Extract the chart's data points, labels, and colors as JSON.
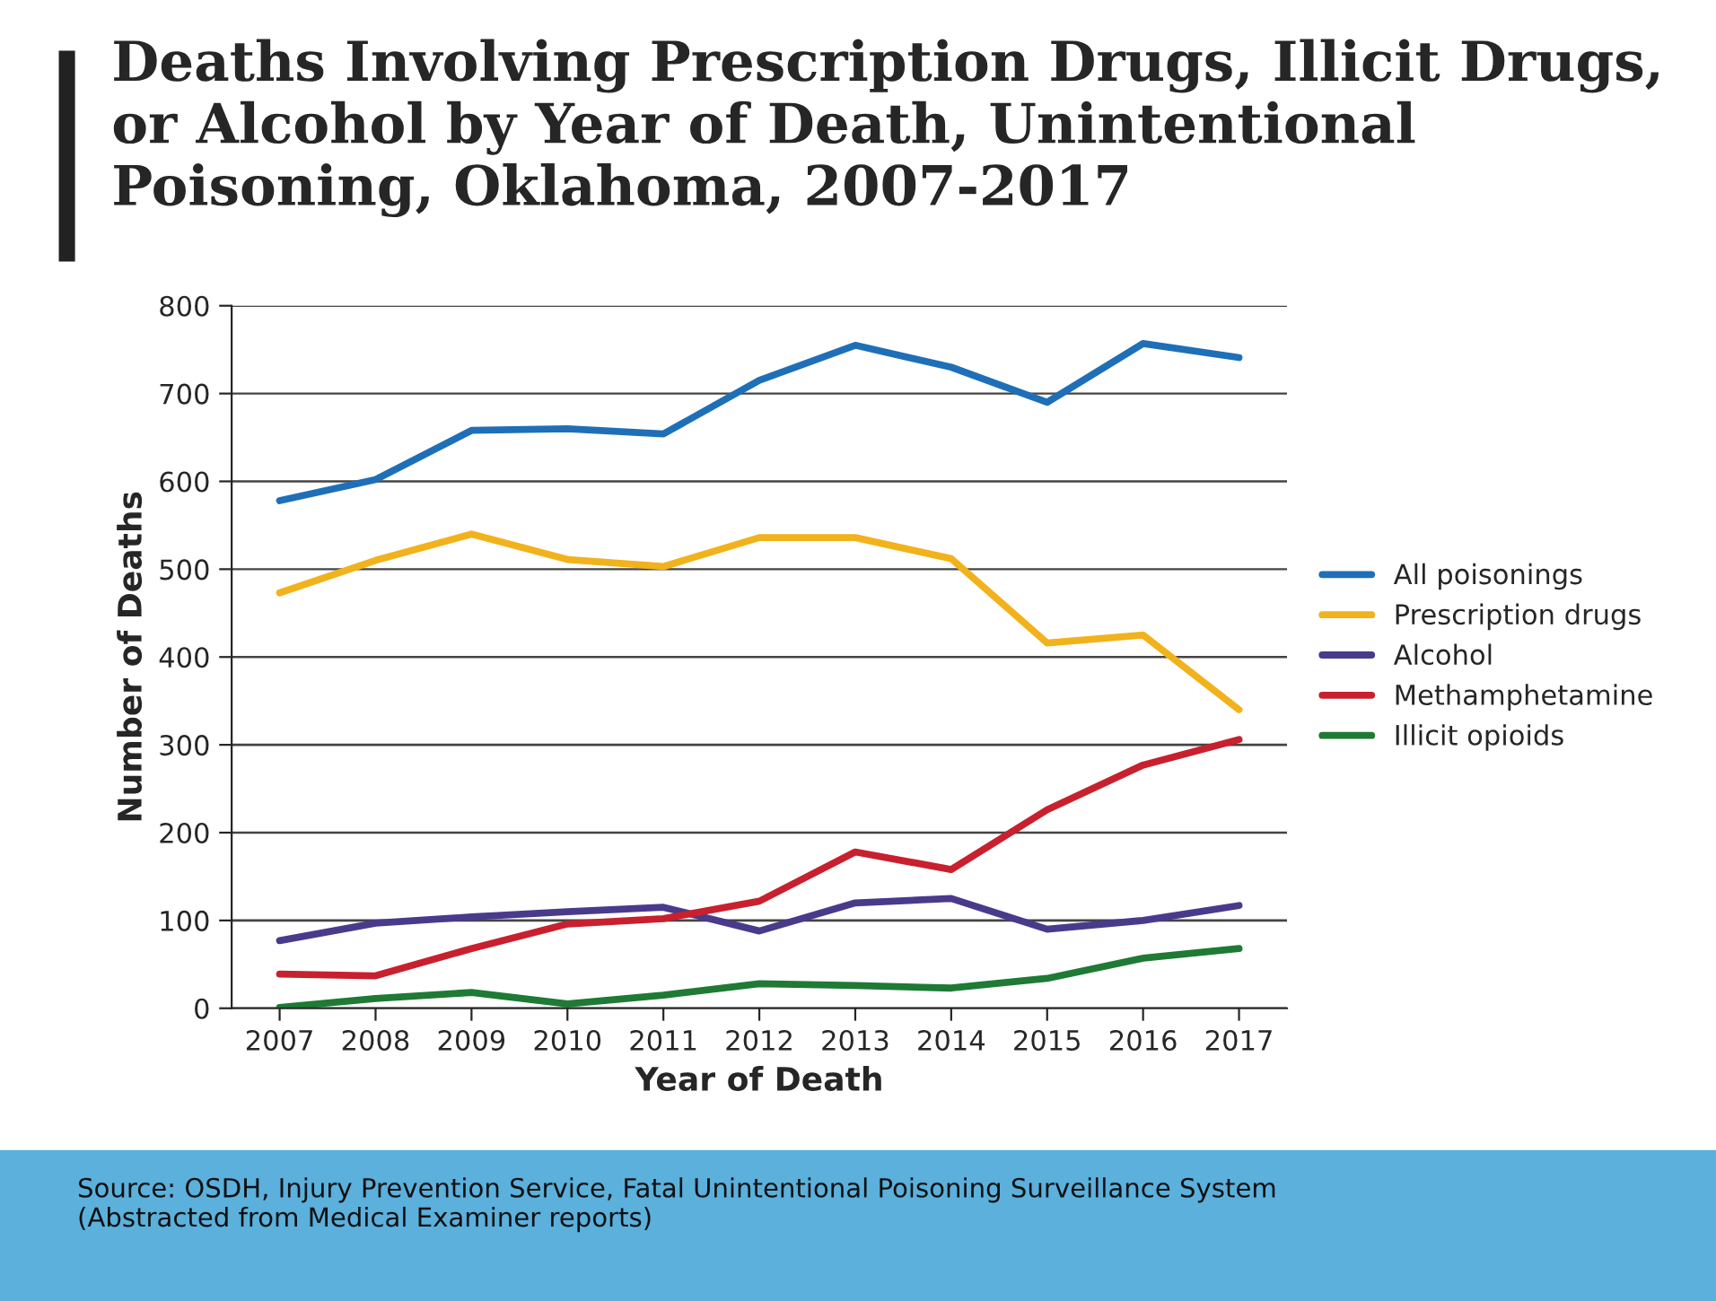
{
  "chart_data": {
    "type": "line",
    "title": "Deaths Involving Prescription Drugs, Illicit Drugs, or Alcohol by Year of Death, Unintentional Poisoning, Oklahoma, 2007-2017",
    "xlabel": "Year of Death",
    "ylabel": "Number of Deaths",
    "categories": [
      "2007",
      "2008",
      "2009",
      "2010",
      "2011",
      "2012",
      "2013",
      "2014",
      "2015",
      "2016",
      "2017"
    ],
    "series": [
      {
        "name": "All poisonings",
        "color": "#1f6fb8",
        "values": [
          578,
          602,
          658,
          660,
          654,
          715,
          755,
          730,
          690,
          757,
          741
        ]
      },
      {
        "name": "Prescription drugs",
        "color": "#f2b21c",
        "values": [
          473,
          510,
          540,
          511,
          503,
          536,
          536,
          512,
          416,
          425,
          340
        ]
      },
      {
        "name": "Alcohol",
        "color": "#4a3a8c",
        "values": [
          77,
          97,
          104,
          110,
          115,
          88,
          120,
          125,
          90,
          100,
          117
        ]
      },
      {
        "name": "Methamphetamine",
        "color": "#c8202e",
        "values": [
          39,
          37,
          68,
          96,
          102,
          122,
          178,
          158,
          226,
          277,
          306
        ]
      },
      {
        "name": "Illicit opioids",
        "color": "#1e7a34",
        "values": [
          1,
          11,
          18,
          5,
          15,
          28,
          26,
          23,
          34,
          57,
          68
        ]
      }
    ],
    "ylim": [
      0,
      800
    ],
    "yticks": [
      0,
      100,
      200,
      300,
      400,
      500,
      600,
      700,
      800
    ],
    "grid": "y",
    "legend": "right",
    "marker": "none",
    "line_style": "solid",
    "annotations": [
      "Source: OSDH, Injury Prevention Service, Fatal Unintentional Poisoning Surveillance System\n(Abstracted from Medical Examiner reports)"
    ]
  }
}
